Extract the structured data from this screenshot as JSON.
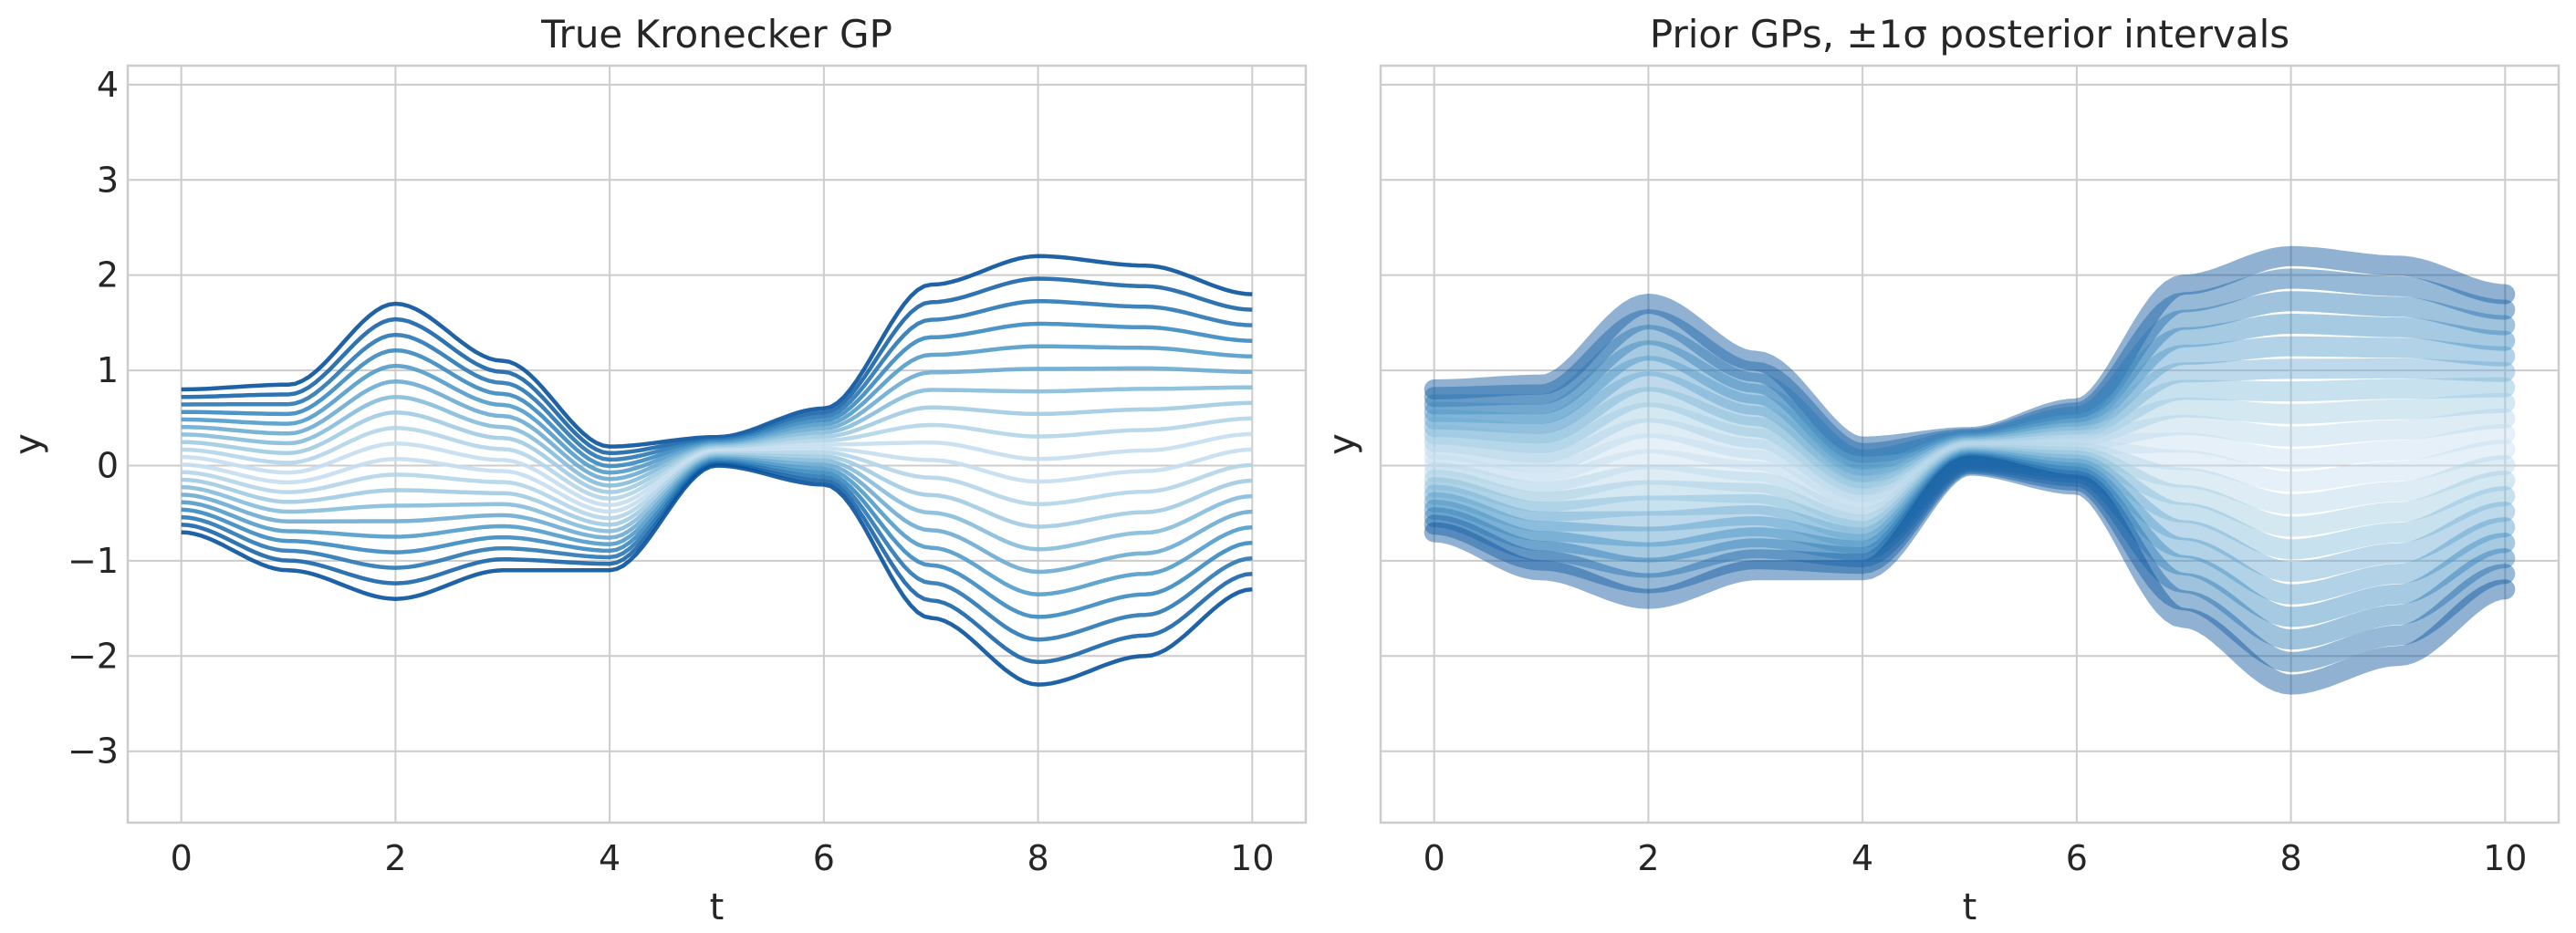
{
  "chart_data": [
    {
      "type": "line",
      "title": "True Kronecker GP",
      "xlabel": "t",
      "ylabel": "y",
      "xlim": [
        -0.5,
        10.5
      ],
      "ylim": [
        -3.75,
        4.2
      ],
      "xticks": [
        0,
        2,
        4,
        6,
        8,
        10
      ],
      "xtick_labels": [
        "0",
        "2",
        "4",
        "6",
        "8",
        "10"
      ],
      "yticks": [
        -3,
        -2,
        -1,
        0,
        1,
        2,
        3,
        4
      ],
      "ytick_labels": [
        "−3",
        "−2",
        "−1",
        "0",
        "1",
        "2",
        "3",
        "4"
      ],
      "grid": true,
      "colormap": [
        "#deebf7",
        "#9ecae1",
        "#4292c6",
        "#08519c"
      ],
      "n_series": 20,
      "series_shape": {
        "x": [
          0,
          1,
          2,
          3,
          4,
          5,
          6,
          7,
          8,
          9,
          10
        ],
        "start": [
          0.8,
          0.85,
          1.7,
          1.1,
          0.2,
          0.3,
          0.6,
          1.9,
          2.2,
          2.1,
          1.8
        ],
        "end": [
          -0.7,
          -1.1,
          -1.4,
          -1.1,
          -1.1,
          0.0,
          -0.2,
          -1.6,
          -2.3,
          -2.0,
          -1.3
        ]
      },
      "style": "lines"
    },
    {
      "type": "line",
      "title": "Prior GPs, ±1σ posterior intervals",
      "xlabel": "t",
      "ylabel": "y",
      "xlim": [
        -0.5,
        10.5
      ],
      "ylim": [
        -3.75,
        4.2
      ],
      "xticks": [
        0,
        2,
        4,
        6,
        8,
        10
      ],
      "xtick_labels": [
        "0",
        "2",
        "4",
        "6",
        "8",
        "10"
      ],
      "yticks": [
        -3,
        -2,
        -1,
        0,
        1,
        2,
        3,
        4
      ],
      "grid": true,
      "colormap": [
        "#deebf7",
        "#9ecae1",
        "#4292c6",
        "#08519c"
      ],
      "n_series": 20,
      "series_shape": {
        "x": [
          0,
          1,
          2,
          3,
          4,
          5,
          6,
          7,
          8,
          9,
          10
        ],
        "start": [
          0.8,
          0.85,
          1.7,
          1.1,
          0.2,
          0.3,
          0.6,
          1.9,
          2.2,
          2.1,
          1.8
        ],
        "end": [
          -0.7,
          -1.1,
          -1.4,
          -1.1,
          -1.1,
          0.0,
          -0.2,
          -1.6,
          -2.3,
          -2.0,
          -1.3
        ]
      },
      "style": "bands"
    }
  ]
}
